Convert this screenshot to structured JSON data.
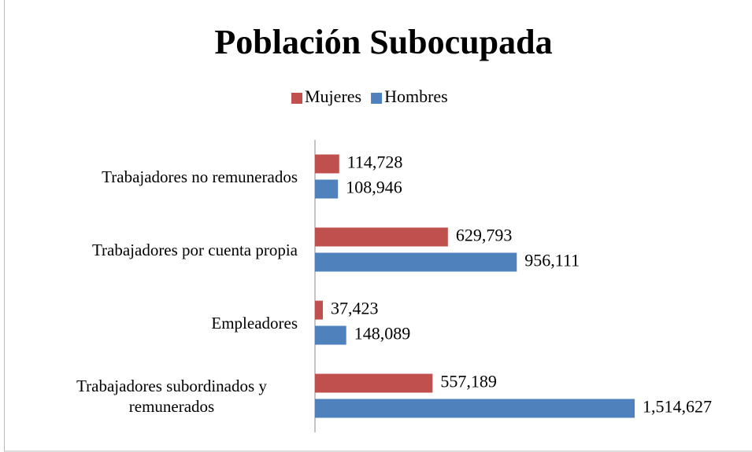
{
  "chart_data": {
    "type": "barh",
    "title": "Población Subocupada",
    "categories": [
      "Trabajadores no remunerados",
      "Trabajadores por cuenta propia",
      "Empleadores",
      "Trabajadores subordinados y remunerados"
    ],
    "series": [
      {
        "name": "Mujeres",
        "color": "#c0504d",
        "values": [
          114728,
          629793,
          37423,
          557189
        ],
        "value_labels": [
          "114,728",
          "629,793",
          "37,423",
          "557,189"
        ]
      },
      {
        "name": "Hombres",
        "color": "#4f81bd",
        "values": [
          108946,
          956111,
          148089,
          1514627
        ],
        "value_labels": [
          "108,946",
          "956,111",
          "148,089",
          "1,514,627"
        ]
      }
    ],
    "legend": "top"
  }
}
